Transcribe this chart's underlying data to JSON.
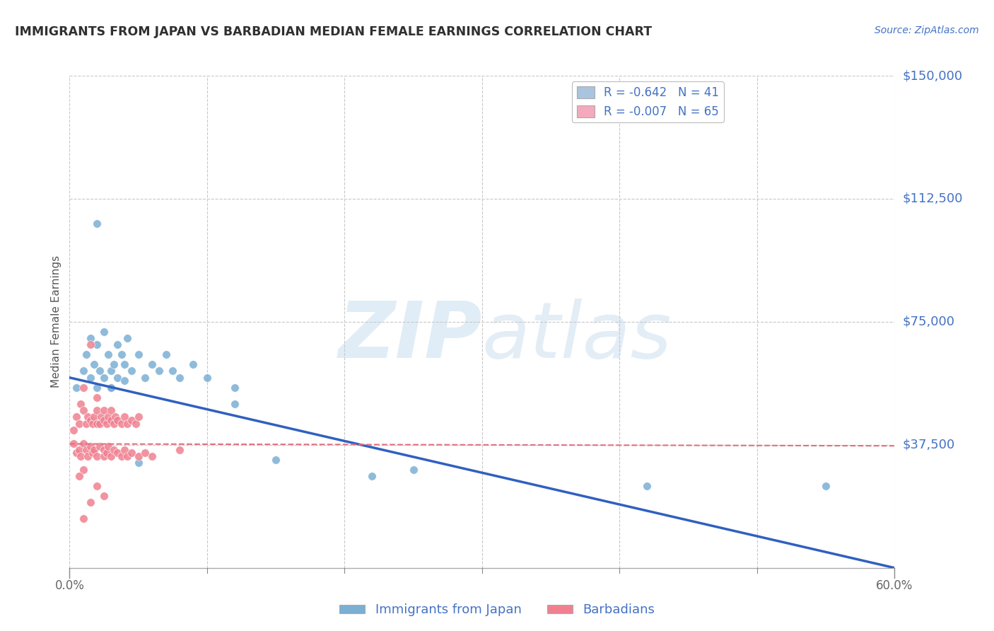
{
  "title": "IMMIGRANTS FROM JAPAN VS BARBADIAN MEDIAN FEMALE EARNINGS CORRELATION CHART",
  "source": "Source: ZipAtlas.com",
  "ylabel": "Median Female Earnings",
  "xlim": [
    0.0,
    0.6
  ],
  "ylim": [
    0,
    150000
  ],
  "yticks": [
    37500,
    75000,
    112500,
    150000
  ],
  "ytick_labels": [
    "$37,500",
    "$75,000",
    "$112,500",
    "$150,000"
  ],
  "legend_entries": [
    {
      "label": "R = -0.642   N = 41",
      "color": "#aac4e0"
    },
    {
      "label": "R = -0.007   N = 65",
      "color": "#f4aabc"
    }
  ],
  "japan_scatter_x": [
    0.005,
    0.01,
    0.012,
    0.015,
    0.015,
    0.018,
    0.02,
    0.02,
    0.022,
    0.025,
    0.025,
    0.028,
    0.03,
    0.03,
    0.032,
    0.035,
    0.035,
    0.038,
    0.04,
    0.04,
    0.042,
    0.045,
    0.05,
    0.055,
    0.06,
    0.065,
    0.07,
    0.075,
    0.08,
    0.09,
    0.1,
    0.12,
    0.15,
    0.25,
    0.42,
    0.55,
    0.22,
    0.12,
    0.05,
    0.03,
    0.02
  ],
  "japan_scatter_y": [
    55000,
    60000,
    65000,
    58000,
    70000,
    62000,
    68000,
    55000,
    60000,
    72000,
    58000,
    65000,
    60000,
    55000,
    62000,
    68000,
    58000,
    65000,
    62000,
    57000,
    70000,
    60000,
    65000,
    58000,
    62000,
    60000,
    65000,
    60000,
    58000,
    62000,
    58000,
    55000,
    33000,
    30000,
    25000,
    25000,
    28000,
    50000,
    32000,
    55000,
    105000
  ],
  "barbadian_scatter_x": [
    0.003,
    0.005,
    0.007,
    0.008,
    0.01,
    0.01,
    0.012,
    0.013,
    0.015,
    0.015,
    0.017,
    0.018,
    0.02,
    0.02,
    0.02,
    0.022,
    0.023,
    0.025,
    0.025,
    0.027,
    0.028,
    0.03,
    0.03,
    0.032,
    0.033,
    0.035,
    0.038,
    0.04,
    0.042,
    0.045,
    0.048,
    0.05,
    0.003,
    0.005,
    0.007,
    0.008,
    0.01,
    0.012,
    0.013,
    0.015,
    0.017,
    0.018,
    0.02,
    0.022,
    0.025,
    0.025,
    0.027,
    0.028,
    0.03,
    0.032,
    0.035,
    0.038,
    0.04,
    0.042,
    0.045,
    0.05,
    0.055,
    0.06,
    0.08,
    0.02,
    0.025,
    0.015,
    0.01,
    0.01,
    0.007
  ],
  "barbadian_scatter_y": [
    42000,
    46000,
    44000,
    50000,
    48000,
    55000,
    44000,
    46000,
    68000,
    45000,
    44000,
    46000,
    48000,
    44000,
    52000,
    44000,
    46000,
    45000,
    48000,
    44000,
    46000,
    45000,
    48000,
    44000,
    46000,
    45000,
    44000,
    46000,
    44000,
    45000,
    44000,
    46000,
    38000,
    35000,
    36000,
    34000,
    38000,
    36000,
    34000,
    37000,
    35000,
    36000,
    34000,
    37000,
    36000,
    34000,
    35000,
    37000,
    34000,
    36000,
    35000,
    34000,
    36000,
    34000,
    35000,
    34000,
    35000,
    34000,
    36000,
    25000,
    22000,
    20000,
    15000,
    30000,
    28000
  ],
  "japan_line_x": [
    0.0,
    0.6
  ],
  "japan_line_y": [
    58000,
    0
  ],
  "barbadian_line_x": [
    0.0,
    0.6
  ],
  "barbadian_line_y": [
    37800,
    37200
  ],
  "japan_color": "#7bafd4",
  "barbadian_color": "#f08090",
  "japan_line_color": "#3060c0",
  "barbadian_line_color": "#e07080",
  "watermark_zip": "ZIP",
  "watermark_atlas": "atlas",
  "background_color": "#ffffff",
  "grid_color": "#c8c8c8",
  "text_color": "#4472c4",
  "title_color": "#303030"
}
